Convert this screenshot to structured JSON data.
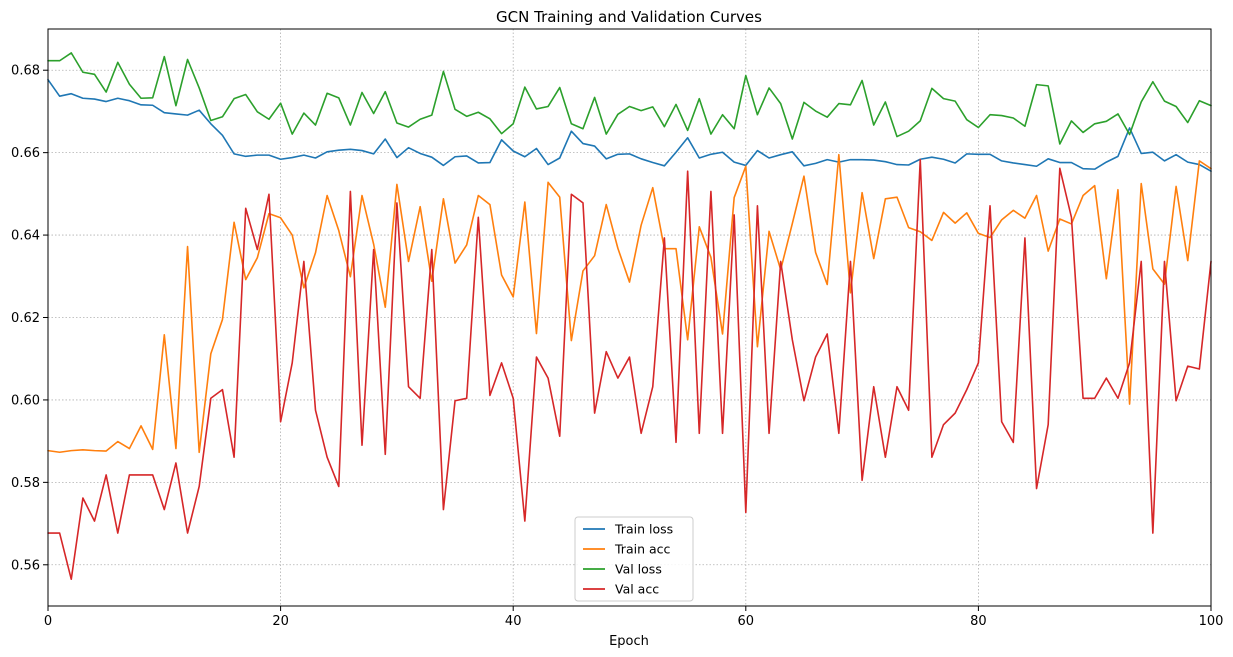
{
  "chart_data": {
    "type": "line",
    "title": "GCN Training and Validation Curves",
    "xlabel": "Epoch",
    "ylabel": "",
    "xlim": [
      0,
      100
    ],
    "ylim": [
      0.55,
      0.69
    ],
    "xticks": [
      0,
      20,
      40,
      60,
      80,
      100
    ],
    "yticks": [
      0.56,
      0.58,
      0.6,
      0.62,
      0.64,
      0.66,
      0.68
    ],
    "ytick_labels": [
      "0.56",
      "0.58",
      "0.60",
      "0.62",
      "0.64",
      "0.66",
      "0.68"
    ],
    "grid": true,
    "legend_position": "lower-center",
    "x": [
      0,
      1,
      2,
      3,
      4,
      5,
      6,
      7,
      8,
      9,
      10,
      11,
      12,
      13,
      14,
      15,
      16,
      17,
      18,
      19,
      20,
      21,
      22,
      23,
      24,
      25,
      26,
      27,
      28,
      29,
      30,
      31,
      32,
      33,
      34,
      35,
      36,
      37,
      38,
      39,
      40,
      41,
      42,
      43,
      44,
      45,
      46,
      47,
      48,
      49,
      50,
      51,
      52,
      53,
      54,
      55,
      56,
      57,
      58,
      59,
      60,
      61,
      62,
      63,
      64,
      65,
      66,
      67,
      68,
      69,
      70,
      71,
      72,
      73,
      74,
      75,
      76,
      77,
      78,
      79,
      80,
      81,
      82,
      83,
      84,
      85,
      86,
      87,
      88,
      89,
      90,
      91,
      92,
      93,
      94,
      95,
      96,
      97,
      98,
      99,
      100
    ],
    "series": [
      {
        "name": "Train loss",
        "color": "#1f77b4",
        "values": [
          0.6777,
          0.6737,
          0.6743,
          0.6732,
          0.673,
          0.6724,
          0.6732,
          0.6726,
          0.6716,
          0.6715,
          0.6697,
          0.6694,
          0.6691,
          0.6703,
          0.667,
          0.6642,
          0.6597,
          0.6591,
          0.6594,
          0.6594,
          0.6584,
          0.6588,
          0.6594,
          0.6587,
          0.6602,
          0.6606,
          0.6608,
          0.6605,
          0.6597,
          0.6633,
          0.6588,
          0.6612,
          0.6598,
          0.6589,
          0.6569,
          0.659,
          0.6592,
          0.6575,
          0.6576,
          0.6631,
          0.6604,
          0.659,
          0.661,
          0.6571,
          0.6587,
          0.6652,
          0.6622,
          0.6616,
          0.6585,
          0.6596,
          0.6597,
          0.6585,
          0.6576,
          0.6568,
          0.6601,
          0.6636,
          0.6587,
          0.6596,
          0.6601,
          0.6577,
          0.6569,
          0.6605,
          0.6587,
          0.6595,
          0.6602,
          0.6568,
          0.6574,
          0.6583,
          0.6577,
          0.6583,
          0.6583,
          0.6582,
          0.6578,
          0.6571,
          0.657,
          0.6584,
          0.6589,
          0.6584,
          0.6575,
          0.6597,
          0.6596,
          0.6596,
          0.658,
          0.6575,
          0.6571,
          0.6567,
          0.6585,
          0.6576,
          0.6576,
          0.6561,
          0.656,
          0.6577,
          0.6591,
          0.666,
          0.6598,
          0.6601,
          0.658,
          0.6595,
          0.6577,
          0.6571,
          0.6555
        ]
      },
      {
        "name": "Train acc",
        "color": "#ff7f0e",
        "values": [
          0.5877,
          0.5873,
          0.5877,
          0.5879,
          0.5877,
          0.5876,
          0.5899,
          0.5882,
          0.5937,
          0.588,
          0.6158,
          0.5882,
          0.6372,
          0.5873,
          0.6112,
          0.6195,
          0.6431,
          0.6292,
          0.6345,
          0.6452,
          0.6442,
          0.64,
          0.6272,
          0.6357,
          0.6496,
          0.6411,
          0.6299,
          0.6496,
          0.6378,
          0.6225,
          0.6523,
          0.6336,
          0.6469,
          0.6288,
          0.6488,
          0.6332,
          0.6376,
          0.6496,
          0.6474,
          0.6303,
          0.625,
          0.648,
          0.6161,
          0.6528,
          0.6492,
          0.6144,
          0.6313,
          0.635,
          0.6474,
          0.6368,
          0.6286,
          0.6424,
          0.6515,
          0.6367,
          0.6367,
          0.6146,
          0.642,
          0.6346,
          0.616,
          0.6491,
          0.6567,
          0.6129,
          0.6409,
          0.6316,
          0.6428,
          0.6543,
          0.6358,
          0.628,
          0.6595,
          0.626,
          0.6503,
          0.6343,
          0.6488,
          0.6492,
          0.6418,
          0.6408,
          0.6387,
          0.6455,
          0.6429,
          0.6454,
          0.6404,
          0.6394,
          0.6437,
          0.646,
          0.6441,
          0.6496,
          0.6361,
          0.6439,
          0.6427,
          0.6496,
          0.652,
          0.6294,
          0.651,
          0.599,
          0.6525,
          0.6318,
          0.6281,
          0.6518,
          0.6338,
          0.658,
          0.6561
        ]
      },
      {
        "name": "Val loss",
        "color": "#2ca02c",
        "values": [
          0.6823,
          0.6823,
          0.6842,
          0.6795,
          0.679,
          0.6747,
          0.6819,
          0.6766,
          0.6732,
          0.6733,
          0.6833,
          0.6714,
          0.6826,
          0.6757,
          0.6678,
          0.6687,
          0.6731,
          0.6741,
          0.6699,
          0.6681,
          0.672,
          0.6645,
          0.6696,
          0.6667,
          0.6744,
          0.6733,
          0.6667,
          0.6746,
          0.6695,
          0.6748,
          0.6672,
          0.6662,
          0.6681,
          0.6691,
          0.6797,
          0.6705,
          0.6688,
          0.6698,
          0.6682,
          0.6646,
          0.667,
          0.6759,
          0.6706,
          0.6712,
          0.6758,
          0.667,
          0.6658,
          0.6734,
          0.6645,
          0.6693,
          0.6712,
          0.6702,
          0.6711,
          0.6663,
          0.6717,
          0.6654,
          0.6731,
          0.6645,
          0.6692,
          0.6658,
          0.6787,
          0.6692,
          0.6757,
          0.6719,
          0.6633,
          0.6722,
          0.6701,
          0.6686,
          0.6719,
          0.6716,
          0.6775,
          0.6667,
          0.6723,
          0.6639,
          0.6652,
          0.6677,
          0.6756,
          0.6731,
          0.6725,
          0.668,
          0.6661,
          0.6692,
          0.669,
          0.6684,
          0.6664,
          0.6765,
          0.6762,
          0.6621,
          0.6677,
          0.6649,
          0.667,
          0.6676,
          0.6694,
          0.6644,
          0.6723,
          0.6772,
          0.6725,
          0.6712,
          0.6673,
          0.6726,
          0.6714
        ]
      },
      {
        "name": "Val acc",
        "color": "#d62728",
        "values": [
          0.5677,
          0.5677,
          0.5565,
          0.5762,
          0.5706,
          0.5818,
          0.5677,
          0.5818,
          0.5818,
          0.5818,
          0.5734,
          0.5847,
          0.5677,
          0.579,
          0.6004,
          0.6025,
          0.5861,
          0.6465,
          0.6365,
          0.6499,
          0.5947,
          0.609,
          0.6336,
          0.5975,
          0.5861,
          0.579,
          0.6506,
          0.589,
          0.6365,
          0.5868,
          0.6478,
          0.6032,
          0.6004,
          0.6365,
          0.5734,
          0.5998,
          0.6004,
          0.6443,
          0.6011,
          0.609,
          0.6004,
          0.5706,
          0.6104,
          0.6053,
          0.5912,
          0.6499,
          0.6478,
          0.5968,
          0.6117,
          0.6053,
          0.6104,
          0.5919,
          0.6032,
          0.6393,
          0.5897,
          0.6555,
          0.5919,
          0.6506,
          0.5919,
          0.6449,
          0.5727,
          0.6471,
          0.5919,
          0.6336,
          0.6146,
          0.5998,
          0.6104,
          0.616,
          0.5919,
          0.6336,
          0.5805,
          0.6032,
          0.5861,
          0.6032,
          0.5975,
          0.6583,
          0.5861,
          0.594,
          0.5968,
          0.6025,
          0.609,
          0.6471,
          0.5947,
          0.5897,
          0.6393,
          0.5785,
          0.594,
          0.6562,
          0.6443,
          0.6004,
          0.6004,
          0.6053,
          0.6004,
          0.609,
          0.6336,
          0.5677,
          0.6336,
          0.5998,
          0.6082,
          0.6075,
          0.6336
        ]
      }
    ]
  }
}
